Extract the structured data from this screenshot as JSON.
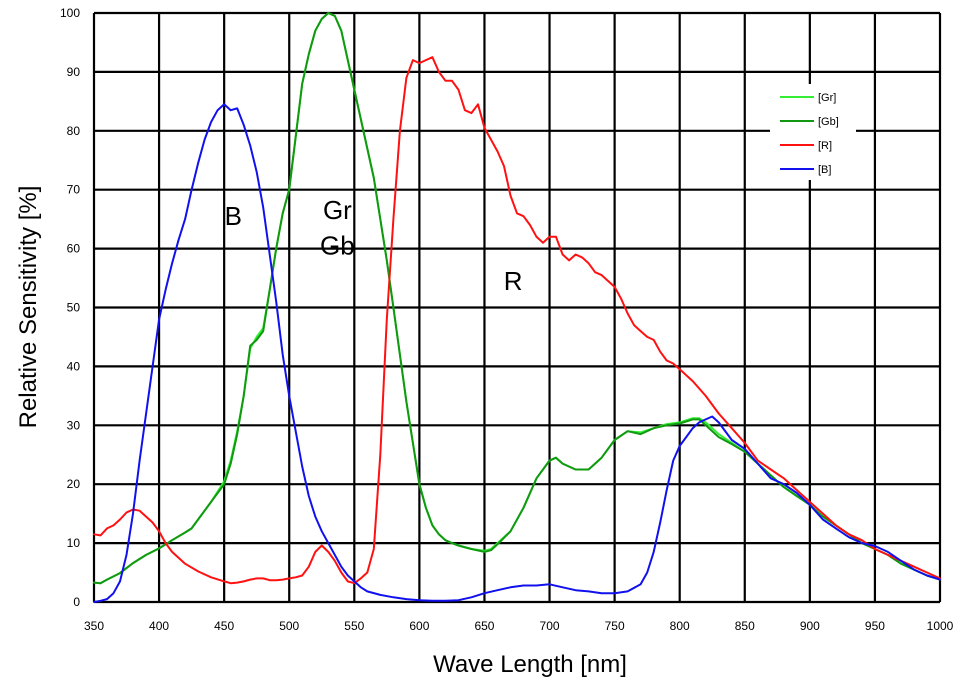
{
  "chart_data": {
    "type": "line",
    "xlabel": "Wave Length    [nm]",
    "ylabel": "Relative Sensitivity    [%]",
    "xlim": [
      350,
      1000
    ],
    "ylim": [
      0,
      100
    ],
    "xticks": [
      "350",
      "400",
      "450",
      "500",
      "550",
      "600",
      "650",
      "700",
      "750",
      "800",
      "850",
      "900",
      "950",
      "1000"
    ],
    "yticks": [
      "0",
      "10",
      "20",
      "30",
      "40",
      "50",
      "60",
      "70",
      "80",
      "90",
      "100"
    ],
    "grid": true,
    "legend_position": "top-right",
    "annotations": [
      {
        "text": "B",
        "x": 457,
        "y": 64
      },
      {
        "text": "Gr",
        "x": 537,
        "y": 65
      },
      {
        "text": "Gb",
        "x": 537,
        "y": 59
      },
      {
        "text": "R",
        "x": 672,
        "y": 53
      }
    ],
    "series": [
      {
        "name": "[Gr]",
        "color": "#33ee33",
        "x": [
          350,
          355,
          360,
          370,
          380,
          390,
          400,
          410,
          420,
          425,
          430,
          440,
          450,
          455,
          460,
          465,
          470,
          475,
          480,
          485,
          490,
          495,
          500,
          505,
          510,
          515,
          520,
          525,
          530,
          535,
          540,
          545,
          550,
          555,
          560,
          565,
          570,
          575,
          580,
          585,
          590,
          595,
          600,
          605,
          610,
          615,
          620,
          625,
          630,
          640,
          650,
          655,
          660,
          670,
          680,
          690,
          700,
          705,
          710,
          720,
          730,
          740,
          750,
          760,
          770,
          780,
          790,
          800,
          810,
          815,
          820,
          830,
          840,
          850,
          860,
          870,
          880,
          890,
          900,
          910,
          920,
          930,
          940,
          950,
          960,
          970,
          980,
          990,
          1000
        ],
        "y": [
          3.3,
          3.2,
          3.8,
          4.9,
          6.6,
          8.0,
          9.1,
          10.5,
          11.8,
          12.5,
          14.0,
          17.0,
          20.5,
          24.0,
          29.0,
          35.0,
          43.0,
          45.0,
          46.5,
          53.0,
          60.0,
          66.0,
          70.0,
          79.0,
          88.0,
          93.0,
          97.0,
          99.0,
          100,
          99.5,
          97.0,
          92.0,
          87.0,
          82.0,
          77.0,
          72.0,
          65.0,
          58.0,
          50.0,
          42.0,
          34.0,
          27.0,
          20.0,
          16.0,
          13.0,
          11.5,
          10.5,
          10.0,
          9.6,
          9.0,
          8.7,
          9.0,
          10.0,
          12.0,
          16.0,
          21.0,
          24.0,
          24.5,
          23.5,
          22.5,
          22.5,
          24.5,
          27.5,
          29.0,
          28.8,
          29.5,
          30.2,
          30.5,
          31.2,
          31.2,
          30.5,
          28.5,
          27.0,
          25.5,
          23.5,
          21.5,
          19.5,
          18.0,
          16.5,
          14.5,
          13.0,
          11.5,
          10.0,
          9.0,
          8.0,
          6.5,
          5.5,
          4.5,
          3.8
        ]
      },
      {
        "name": "[Gb]",
        "color": "#119911",
        "x": [
          350,
          355,
          360,
          370,
          380,
          390,
          400,
          410,
          420,
          425,
          430,
          440,
          450,
          455,
          460,
          465,
          470,
          475,
          480,
          485,
          490,
          495,
          500,
          505,
          510,
          515,
          520,
          525,
          530,
          535,
          540,
          545,
          550,
          555,
          560,
          565,
          570,
          575,
          580,
          585,
          590,
          595,
          600,
          605,
          610,
          615,
          620,
          625,
          630,
          640,
          650,
          655,
          660,
          670,
          680,
          690,
          700,
          705,
          710,
          720,
          730,
          740,
          750,
          760,
          770,
          780,
          790,
          800,
          810,
          815,
          820,
          830,
          840,
          850,
          860,
          870,
          880,
          890,
          900,
          910,
          920,
          930,
          940,
          950,
          960,
          970,
          980,
          990,
          1000
        ],
        "y": [
          3.3,
          3.2,
          3.8,
          4.9,
          6.6,
          8.0,
          9.1,
          10.5,
          11.8,
          12.5,
          14.0,
          17.0,
          20.0,
          23.5,
          28.5,
          35.0,
          43.5,
          44.5,
          46.0,
          53.0,
          60.0,
          66.0,
          70.0,
          79.0,
          88.0,
          93.0,
          97.0,
          99.0,
          100,
          99.5,
          97.0,
          92.0,
          87.0,
          82.0,
          77.0,
          72.0,
          65.0,
          58.0,
          50.0,
          42.0,
          34.0,
          27.0,
          20.0,
          16.0,
          13.0,
          11.5,
          10.5,
          10.0,
          9.6,
          9.0,
          8.5,
          8.8,
          9.8,
          12.0,
          16.0,
          21.0,
          24.0,
          24.5,
          23.5,
          22.5,
          22.5,
          24.5,
          27.5,
          29.0,
          28.5,
          29.5,
          30.0,
          30.3,
          31.0,
          31.0,
          30.0,
          28.0,
          26.8,
          25.5,
          23.5,
          21.5,
          19.5,
          18.0,
          16.5,
          14.5,
          13.0,
          11.5,
          10.0,
          9.0,
          8.0,
          6.5,
          5.5,
          4.5,
          3.8
        ]
      },
      {
        "name": "[R]",
        "color": "#ff1111",
        "x": [
          350,
          355,
          360,
          365,
          370,
          375,
          380,
          385,
          390,
          395,
          400,
          405,
          410,
          420,
          430,
          440,
          450,
          455,
          460,
          465,
          470,
          475,
          480,
          485,
          490,
          495,
          500,
          505,
          510,
          515,
          520,
          525,
          530,
          535,
          540,
          545,
          550,
          555,
          560,
          565,
          570,
          575,
          580,
          585,
          590,
          595,
          600,
          605,
          610,
          615,
          620,
          625,
          630,
          635,
          640,
          645,
          650,
          655,
          660,
          665,
          670,
          675,
          680,
          685,
          690,
          695,
          700,
          705,
          710,
          715,
          720,
          725,
          730,
          735,
          740,
          745,
          750,
          755,
          760,
          765,
          770,
          775,
          780,
          785,
          790,
          795,
          800,
          810,
          820,
          830,
          840,
          850,
          860,
          870,
          880,
          890,
          900,
          910,
          920,
          930,
          940,
          950,
          960,
          970,
          980,
          990,
          1000
        ],
        "y": [
          11.5,
          11.3,
          12.5,
          13.0,
          14.0,
          15.2,
          15.7,
          15.5,
          14.5,
          13.5,
          12.0,
          10.0,
          8.5,
          6.5,
          5.2,
          4.2,
          3.5,
          3.2,
          3.3,
          3.5,
          3.8,
          4.0,
          4.0,
          3.7,
          3.7,
          3.8,
          4.0,
          4.2,
          4.5,
          6.0,
          8.5,
          9.6,
          8.5,
          7.0,
          5.0,
          3.5,
          3.2,
          4.0,
          5.0,
          9.0,
          25.0,
          48.0,
          65.0,
          80.0,
          89.0,
          92.0,
          91.5,
          92.0,
          92.5,
          90.0,
          88.5,
          88.5,
          87.0,
          83.5,
          83.0,
          84.5,
          80.5,
          78.5,
          76.5,
          74.0,
          69.0,
          66.0,
          65.5,
          64.0,
          62.0,
          61.0,
          62.0,
          62.0,
          59.0,
          58.0,
          59.0,
          58.5,
          57.5,
          56.0,
          55.5,
          54.5,
          53.5,
          51.5,
          49.0,
          47.0,
          46.0,
          45.0,
          44.5,
          42.5,
          41.0,
          40.5,
          39.5,
          37.5,
          35.0,
          32.0,
          29.5,
          27.0,
          24.0,
          22.5,
          21.0,
          19.0,
          17.0,
          15.0,
          13.0,
          11.5,
          10.5,
          9.0,
          8.0,
          7.0,
          6.0,
          5.0,
          4.0
        ]
      },
      {
        "name": "[B]",
        "color": "#1111ee",
        "x": [
          350,
          355,
          360,
          365,
          370,
          375,
          380,
          385,
          390,
          395,
          400,
          405,
          410,
          415,
          420,
          425,
          430,
          435,
          440,
          445,
          450,
          455,
          460,
          465,
          470,
          475,
          480,
          485,
          490,
          495,
          500,
          505,
          510,
          515,
          520,
          525,
          530,
          535,
          540,
          545,
          550,
          555,
          560,
          570,
          580,
          590,
          600,
          610,
          620,
          630,
          640,
          650,
          660,
          670,
          680,
          690,
          700,
          710,
          720,
          730,
          740,
          750,
          760,
          770,
          775,
          780,
          785,
          790,
          795,
          800,
          805,
          810,
          815,
          820,
          825,
          830,
          840,
          850,
          860,
          870,
          880,
          890,
          900,
          910,
          920,
          930,
          940,
          950,
          960,
          970,
          980,
          990,
          1000
        ],
        "y": [
          0.0,
          0.2,
          0.5,
          1.5,
          3.5,
          8.0,
          15.0,
          24.0,
          32.0,
          40.0,
          48.0,
          53.0,
          57.5,
          61.5,
          65.0,
          70.0,
          74.5,
          78.5,
          81.5,
          83.5,
          84.5,
          83.5,
          83.8,
          81.0,
          77.5,
          73.0,
          67.0,
          59.0,
          51.0,
          42.0,
          35.0,
          29.0,
          23.0,
          18.0,
          14.5,
          12.0,
          10.0,
          8.0,
          6.0,
          4.5,
          3.5,
          2.5,
          1.8,
          1.2,
          0.8,
          0.5,
          0.3,
          0.2,
          0.2,
          0.3,
          0.8,
          1.5,
          2.0,
          2.5,
          2.8,
          2.8,
          3.0,
          2.5,
          2.0,
          1.8,
          1.5,
          1.5,
          1.8,
          3.0,
          5.0,
          8.5,
          13.5,
          19.0,
          24.0,
          26.5,
          28.0,
          29.5,
          30.5,
          31.0,
          31.5,
          30.5,
          27.5,
          26.0,
          23.5,
          21.0,
          20.0,
          18.5,
          16.5,
          14.0,
          12.5,
          11.0,
          10.0,
          9.5,
          8.5,
          7.0,
          5.5,
          4.5,
          3.8
        ]
      }
    ]
  }
}
